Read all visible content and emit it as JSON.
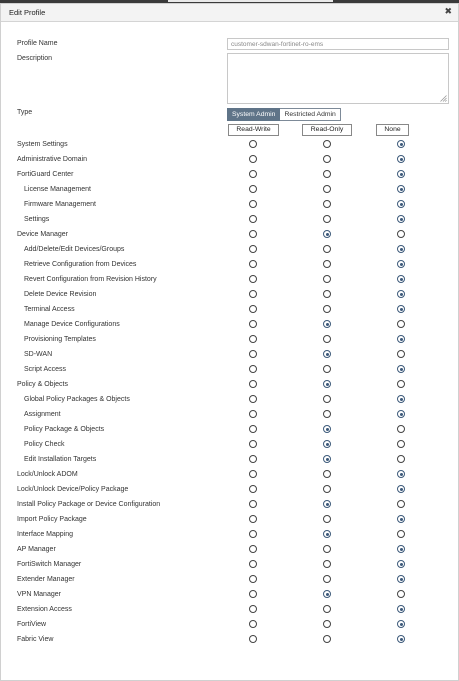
{
  "window": {
    "title": "Edit Profile",
    "close_icon": "close-icon"
  },
  "form": {
    "profile_name_label": "Profile Name",
    "profile_name_value": "customer-sdwan-fortinet-ro-ems",
    "description_label": "Description",
    "description_value": "",
    "type_label": "Type",
    "type_options": [
      "System Admin",
      "Restricted Admin"
    ],
    "type_selected": "System Admin"
  },
  "permission_columns": [
    "Read-Write",
    "Read-Only",
    "None"
  ],
  "permissions": [
    {
      "label": "System Settings",
      "indent": 0,
      "value": "None"
    },
    {
      "label": "Administrative Domain",
      "indent": 0,
      "value": "None"
    },
    {
      "label": "FortiGuard Center",
      "indent": 0,
      "value": "None"
    },
    {
      "label": "License Management",
      "indent": 1,
      "value": "None"
    },
    {
      "label": "Firmware Management",
      "indent": 1,
      "value": "None"
    },
    {
      "label": "Settings",
      "indent": 1,
      "value": "None"
    },
    {
      "label": "Device Manager",
      "indent": 0,
      "value": "Read-Only"
    },
    {
      "label": "Add/Delete/Edit Devices/Groups",
      "indent": 1,
      "value": "None"
    },
    {
      "label": "Retrieve Configuration from Devices",
      "indent": 1,
      "value": "None"
    },
    {
      "label": "Revert Configuration from Revision History",
      "indent": 1,
      "value": "None"
    },
    {
      "label": "Delete Device Revision",
      "indent": 1,
      "value": "None"
    },
    {
      "label": "Terminal Access",
      "indent": 1,
      "value": "None"
    },
    {
      "label": "Manage Device Configurations",
      "indent": 1,
      "value": "Read-Only"
    },
    {
      "label": "Provisioning Templates",
      "indent": 1,
      "value": "None"
    },
    {
      "label": "SD-WAN",
      "indent": 1,
      "value": "Read-Only"
    },
    {
      "label": "Script Access",
      "indent": 1,
      "value": "None"
    },
    {
      "label": "Policy & Objects",
      "indent": 0,
      "value": "Read-Only"
    },
    {
      "label": "Global Policy Packages & Objects",
      "indent": 1,
      "value": "None"
    },
    {
      "label": "Assignment",
      "indent": 1,
      "value": "None"
    },
    {
      "label": "Policy Package & Objects",
      "indent": 1,
      "value": "Read-Only"
    },
    {
      "label": "Policy Check",
      "indent": 1,
      "value": "Read-Only"
    },
    {
      "label": "Edit Installation Targets",
      "indent": 1,
      "value": "Read-Only"
    },
    {
      "label": "Lock/Unlock ADOM",
      "indent": 0,
      "value": "None"
    },
    {
      "label": "Lock/Unlock Device/Policy Package",
      "indent": 0,
      "value": "None"
    },
    {
      "label": "Install Policy Package or Device Configuration",
      "indent": 0,
      "value": "Read-Only"
    },
    {
      "label": "Import Policy Package",
      "indent": 0,
      "value": "None"
    },
    {
      "label": "Interface Mapping",
      "indent": 0,
      "value": "Read-Only"
    },
    {
      "label": "AP Manager",
      "indent": 0,
      "value": "None"
    },
    {
      "label": "FortiSwitch Manager",
      "indent": 0,
      "value": "None"
    },
    {
      "label": "Extender Manager",
      "indent": 0,
      "value": "None"
    },
    {
      "label": "VPN Manager",
      "indent": 0,
      "value": "Read-Only"
    },
    {
      "label": "Extension Access",
      "indent": 0,
      "value": "None"
    },
    {
      "label": "FortiView",
      "indent": 0,
      "value": "None"
    },
    {
      "label": "Fabric View",
      "indent": 0,
      "value": "None"
    }
  ],
  "colors": {
    "accent": "#5f7488",
    "radio_selected": "#3d5a7a"
  }
}
